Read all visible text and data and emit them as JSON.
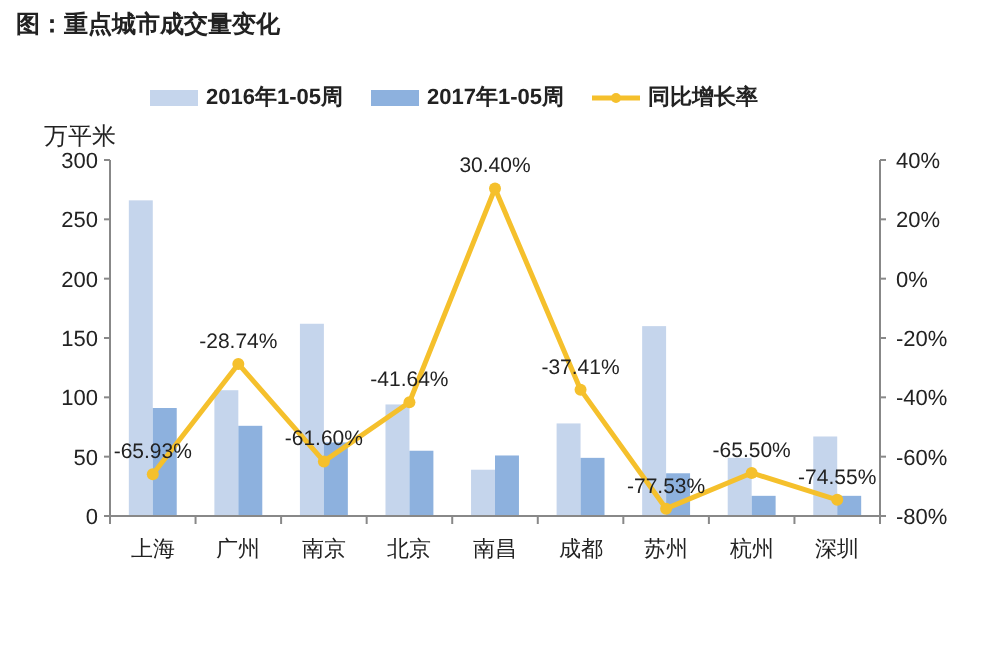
{
  "chart_data": {
    "type": "bar",
    "title": "图：重点城市成交量变化",
    "ylabel": "万平米",
    "categories": [
      "上海",
      "广州",
      "南京",
      "北京",
      "南昌",
      "成都",
      "苏州",
      "杭州",
      "深圳"
    ],
    "series": [
      {
        "name": "2016年1-05周",
        "color": "#c5d5ec",
        "values": [
          266,
          106,
          162,
          94,
          39,
          78,
          160,
          49,
          67
        ]
      },
      {
        "name": "2017年1-05周",
        "color": "#8db1de",
        "values": [
          91,
          76,
          62,
          55,
          51,
          49,
          36,
          17,
          17
        ]
      },
      {
        "name": "同比增长率",
        "type": "line",
        "axis": "y2",
        "color": "#f5c02c",
        "marker": "circle",
        "values": [
          -65.93,
          -28.74,
          -61.6,
          -41.64,
          30.4,
          -37.41,
          -77.53,
          -65.5,
          -74.55
        ],
        "value_labels": [
          "-65.93%",
          "-28.74%",
          "-61.60%",
          "-41.64%",
          "30.40%",
          "-37.41%",
          "-77.53%",
          "-65.50%",
          "-74.55%"
        ]
      }
    ],
    "ylim": [
      0,
      300
    ],
    "yticks": [
      0,
      50,
      100,
      150,
      200,
      250,
      300
    ],
    "y2lim": [
      -80,
      40
    ],
    "y2ticks": [
      {
        "value": -80,
        "label": "-80%"
      },
      {
        "value": -60,
        "label": "-60%"
      },
      {
        "value": -40,
        "label": "-40%"
      },
      {
        "value": -20,
        "label": "-20%"
      },
      {
        "value": 0,
        "label": "0%"
      },
      {
        "value": 20,
        "label": "20%"
      },
      {
        "value": 40,
        "label": "40%"
      }
    ],
    "legend": "top",
    "grid": false
  }
}
